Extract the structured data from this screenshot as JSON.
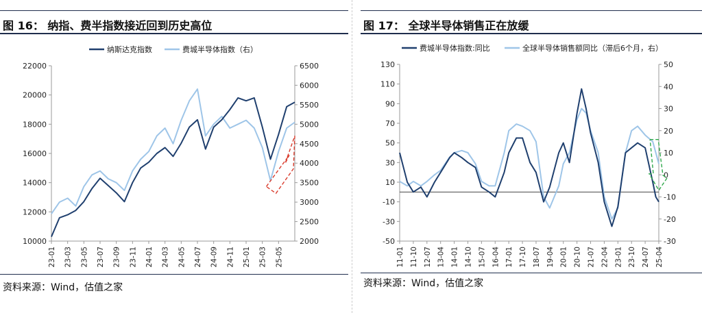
{
  "figures": [
    {
      "id": "fig16",
      "title": "图 16：  纳指、费半指数接近回到历史高位",
      "source": "资料来源：Wind，估值之家"
    },
    {
      "id": "fig17",
      "title": "图 17：  全球半导体销售正在放缓",
      "source": "资料来源：Wind，估值之家"
    }
  ],
  "chart_data": [
    {
      "type": "line",
      "x_ticks": [
        "23-01",
        "23-03",
        "23-05",
        "23-07",
        "23-09",
        "23-11",
        "24-01",
        "24-03",
        "24-05",
        "24-07",
        "24-09",
        "24-11",
        "25-01",
        "25-03",
        "25-05"
      ],
      "x_range": [
        "23-01",
        "25-07"
      ],
      "y_left": {
        "min": 10000,
        "max": 22000,
        "ticks": [
          10000,
          12000,
          14000,
          16000,
          18000,
          20000,
          22000
        ]
      },
      "y_right": {
        "min": 2000,
        "max": 6500,
        "ticks": [
          2000,
          2500,
          3000,
          3500,
          4000,
          4500,
          5000,
          5500,
          6000,
          6500
        ]
      },
      "legend_position": "top",
      "series": [
        {
          "name": "纳斯达克指数",
          "axis": "left",
          "color": "#1f3f6e",
          "points": [
            [
              "23-01",
              10300
            ],
            [
              "23-02",
              11600
            ],
            [
              "23-03",
              11800
            ],
            [
              "23-04",
              12100
            ],
            [
              "23-05",
              12700
            ],
            [
              "23-06",
              13600
            ],
            [
              "23-07",
              14300
            ],
            [
              "23-08",
              13800
            ],
            [
              "23-09",
              13300
            ],
            [
              "23-10",
              12700
            ],
            [
              "23-11",
              14000
            ],
            [
              "23-12",
              15000
            ],
            [
              "24-01",
              15400
            ],
            [
              "24-02",
              16000
            ],
            [
              "24-03",
              16400
            ],
            [
              "24-04",
              15800
            ],
            [
              "24-05",
              16700
            ],
            [
              "24-06",
              17800
            ],
            [
              "24-07",
              18300
            ],
            [
              "24-08",
              16300
            ],
            [
              "24-09",
              17800
            ],
            [
              "24-10",
              18300
            ],
            [
              "24-11",
              19000
            ],
            [
              "24-12",
              19800
            ],
            [
              "25-01",
              19600
            ],
            [
              "25-02",
              19800
            ],
            [
              "25-03",
              17800
            ],
            [
              "25-04",
              15600
            ],
            [
              "25-05",
              17300
            ],
            [
              "25-06",
              19200
            ],
            [
              "25-07",
              19500
            ]
          ]
        },
        {
          "name": "费城半导体指数（右）",
          "axis": "right",
          "color": "#9ec5e8",
          "points": [
            [
              "23-01",
              2700
            ],
            [
              "23-02",
              3000
            ],
            [
              "23-03",
              3100
            ],
            [
              "23-04",
              2900
            ],
            [
              "23-05",
              3400
            ],
            [
              "23-06",
              3700
            ],
            [
              "23-07",
              3800
            ],
            [
              "23-08",
              3600
            ],
            [
              "23-09",
              3500
            ],
            [
              "23-10",
              3300
            ],
            [
              "23-11",
              3800
            ],
            [
              "23-12",
              4100
            ],
            [
              "24-01",
              4300
            ],
            [
              "24-02",
              4700
            ],
            [
              "24-03",
              4900
            ],
            [
              "24-04",
              4500
            ],
            [
              "24-05",
              5100
            ],
            [
              "24-06",
              5600
            ],
            [
              "24-07",
              5900
            ],
            [
              "24-08",
              4700
            ],
            [
              "24-09",
              5000
            ],
            [
              "24-10",
              5200
            ],
            [
              "24-11",
              4900
            ],
            [
              "24-12",
              5000
            ],
            [
              "25-01",
              5100
            ],
            [
              "25-02",
              4900
            ],
            [
              "25-03",
              4400
            ],
            [
              "25-04",
              3550
            ],
            [
              "25-05",
              4300
            ],
            [
              "25-06",
              4900
            ],
            [
              "25-07",
              5050
            ]
          ]
        }
      ],
      "annotation": {
        "type": "dashed-arrow",
        "color": "#d93a2b",
        "direction": "up-right",
        "from": "25-04",
        "to": "25-07"
      }
    },
    {
      "type": "line",
      "x_ticks": [
        "11-01",
        "11-10",
        "12-07",
        "13-04",
        "14-01",
        "14-10",
        "15-07",
        "16-04",
        "17-01",
        "17-10",
        "18-07",
        "19-04",
        "20-01",
        "20-10",
        "21-07",
        "22-04",
        "23-01",
        "23-10",
        "24-07",
        "25-04"
      ],
      "x_range": [
        "11-01",
        "25-04"
      ],
      "y_left": {
        "min": -50,
        "max": 130,
        "ticks": [
          -50,
          -30,
          -10,
          10,
          30,
          50,
          70,
          90,
          110,
          130
        ]
      },
      "y_right": {
        "min": -30,
        "max": 50,
        "ticks": [
          -30,
          -20,
          -10,
          0,
          10,
          20,
          30,
          40,
          50
        ]
      },
      "legend_position": "top",
      "series": [
        {
          "name": "费城半导体指数:同比",
          "axis": "left",
          "color": "#1f3f6e",
          "points": [
            [
              "11-01",
              40
            ],
            [
              "11-06",
              10
            ],
            [
              "11-10",
              0
            ],
            [
              "12-03",
              5
            ],
            [
              "12-07",
              -5
            ],
            [
              "12-12",
              10
            ],
            [
              "13-04",
              20
            ],
            [
              "13-10",
              35
            ],
            [
              "14-01",
              40
            ],
            [
              "14-06",
              35
            ],
            [
              "14-10",
              30
            ],
            [
              "15-03",
              25
            ],
            [
              "15-07",
              5
            ],
            [
              "15-12",
              0
            ],
            [
              "16-04",
              -5
            ],
            [
              "16-10",
              20
            ],
            [
              "17-01",
              40
            ],
            [
              "17-06",
              55
            ],
            [
              "17-10",
              55
            ],
            [
              "18-03",
              30
            ],
            [
              "18-07",
              20
            ],
            [
              "18-12",
              -10
            ],
            [
              "19-04",
              5
            ],
            [
              "19-10",
              40
            ],
            [
              "20-01",
              50
            ],
            [
              "20-05",
              30
            ],
            [
              "20-10",
              80
            ],
            [
              "21-01",
              105
            ],
            [
              "21-04",
              85
            ],
            [
              "21-07",
              60
            ],
            [
              "21-12",
              30
            ],
            [
              "22-04",
              -10
            ],
            [
              "22-09",
              -35
            ],
            [
              "23-01",
              -15
            ],
            [
              "23-06",
              40
            ],
            [
              "23-10",
              45
            ],
            [
              "24-02",
              50
            ],
            [
              "24-07",
              45
            ],
            [
              "24-12",
              10
            ],
            [
              "25-02",
              -5
            ],
            [
              "25-04",
              -10
            ]
          ]
        },
        {
          "name": "全球半导体销售额同比（滞后6个月，右）",
          "axis": "right",
          "color": "#9ec5e8",
          "points": [
            [
              "11-01",
              -3
            ],
            [
              "11-06",
              -5
            ],
            [
              "11-10",
              -3
            ],
            [
              "12-03",
              -5
            ],
            [
              "12-07",
              -3
            ],
            [
              "12-12",
              0
            ],
            [
              "13-04",
              2
            ],
            [
              "13-10",
              8
            ],
            [
              "14-01",
              10
            ],
            [
              "14-06",
              11
            ],
            [
              "14-10",
              10
            ],
            [
              "15-03",
              5
            ],
            [
              "15-07",
              -3
            ],
            [
              "15-12",
              -5
            ],
            [
              "16-04",
              -5
            ],
            [
              "16-10",
              10
            ],
            [
              "17-01",
              20
            ],
            [
              "17-06",
              23
            ],
            [
              "17-10",
              22
            ],
            [
              "18-03",
              20
            ],
            [
              "18-07",
              15
            ],
            [
              "18-12",
              -10
            ],
            [
              "19-04",
              -15
            ],
            [
              "19-10",
              -5
            ],
            [
              "20-01",
              5
            ],
            [
              "20-05",
              10
            ],
            [
              "20-10",
              25
            ],
            [
              "21-01",
              30
            ],
            [
              "21-04",
              28
            ],
            [
              "21-07",
              20
            ],
            [
              "21-12",
              10
            ],
            [
              "22-04",
              -10
            ],
            [
              "22-09",
              -20
            ],
            [
              "23-01",
              -15
            ],
            [
              "23-06",
              10
            ],
            [
              "23-10",
              20
            ],
            [
              "24-02",
              22
            ],
            [
              "24-07",
              18
            ],
            [
              "24-12",
              15
            ],
            [
              "25-02",
              10
            ],
            [
              "25-04",
              5
            ]
          ]
        }
      ],
      "annotation": {
        "type": "dashed-arrow",
        "color": "#2ea84a",
        "direction": "down-right",
        "from": "24-12",
        "to": "25-04"
      }
    }
  ]
}
